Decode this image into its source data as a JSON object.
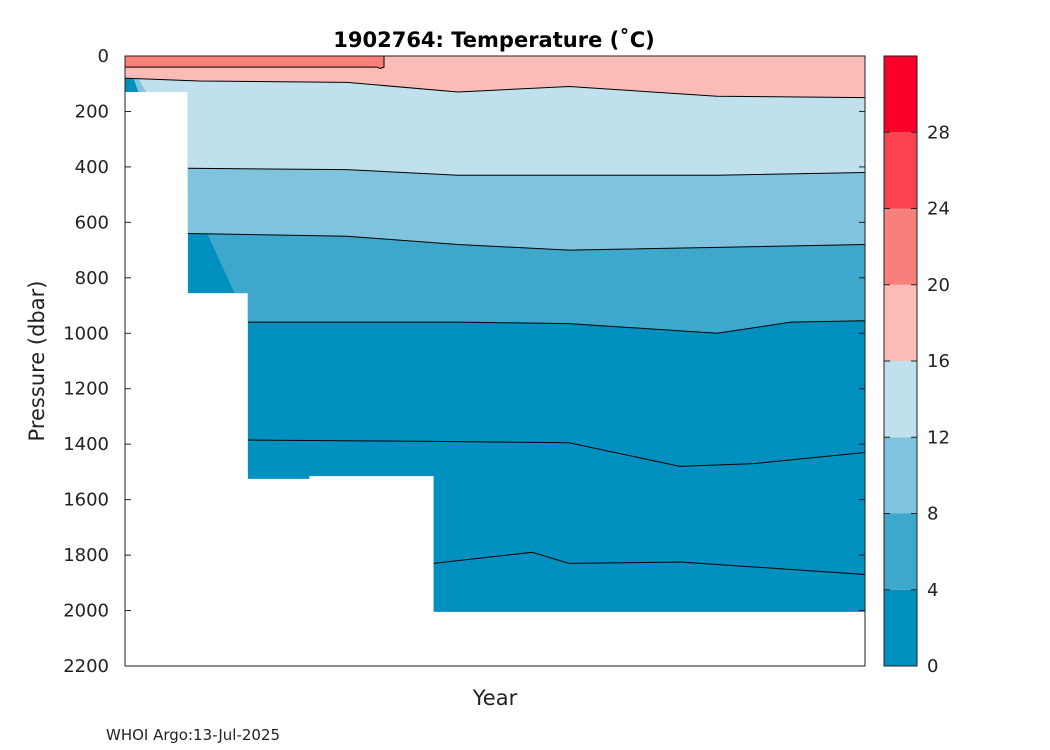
{
  "chart_data": {
    "type": "heatmap",
    "title": "1902764:  Temperature (˚C)",
    "xlabel": "Year",
    "ylabel": "Pressure (dbar)",
    "ylim": [
      0,
      2200
    ],
    "y_reversed": true,
    "y_ticks": [
      0,
      200,
      400,
      600,
      800,
      1000,
      1200,
      1400,
      1600,
      1800,
      2000,
      2200
    ],
    "x_ticks": [],
    "colorbar": {
      "range": [
        0,
        32
      ],
      "ticks": [
        0,
        4,
        8,
        12,
        16,
        20,
        24,
        28
      ],
      "bins": [
        {
          "min": 0,
          "max": 4,
          "color": "#0090bf"
        },
        {
          "min": 4,
          "max": 8,
          "color": "#3ea7cc"
        },
        {
          "min": 8,
          "max": 12,
          "color": "#80c3de"
        },
        {
          "min": 12,
          "max": 16,
          "color": "#bfe0ec"
        },
        {
          "min": 16,
          "max": 20,
          "color": "#fbbcb7"
        },
        {
          "min": 20,
          "max": 24,
          "color": "#f7807a"
        },
        {
          "min": 24,
          "max": 28,
          "color": "#fa4251"
        },
        {
          "min": 28,
          "max": 32,
          "color": "#fb0029"
        }
      ]
    },
    "max_pressure_profile": {
      "x_fraction": [
        0,
        0.085,
        0.085,
        0.166,
        0.166,
        0.249,
        0.249,
        0.417,
        0.417,
        1.0
      ],
      "pressure": [
        130,
        130,
        855,
        855,
        1525,
        1525,
        1515,
        1515,
        2005,
        2005
      ]
    },
    "isotherms": [
      {
        "value": 20,
        "x_fraction": [
          0,
          0.34,
          0.345,
          0.35,
          0.35
        ],
        "pressure": [
          40,
          40,
          45,
          40,
          0
        ]
      },
      {
        "value": 16,
        "x_fraction": [
          0,
          0.1,
          0.3,
          0.45,
          0.6,
          0.8,
          1.0
        ],
        "pressure": [
          80,
          90,
          95,
          130,
          110,
          145,
          150
        ]
      },
      {
        "value": 12,
        "x_fraction": [
          0.085,
          0.3,
          0.45,
          0.6,
          0.8,
          1.0
        ],
        "pressure": [
          405,
          410,
          430,
          430,
          430,
          420
        ]
      },
      {
        "value": 8,
        "x_fraction": [
          0.085,
          0.3,
          0.45,
          0.6,
          0.8,
          1.0
        ],
        "pressure": [
          640,
          650,
          680,
          700,
          690,
          680
        ]
      },
      {
        "value": 4,
        "x_fraction": [
          0.166,
          0.3,
          0.45,
          0.6,
          0.8,
          0.9,
          1.0
        ],
        "pressure": [
          960,
          960,
          960,
          965,
          1000,
          960,
          955
        ]
      },
      {
        "value": 3,
        "x_fraction": [
          0.166,
          0.417,
          0.6,
          0.75,
          0.85,
          1.0
        ],
        "pressure": [
          1385,
          1390,
          1395,
          1480,
          1470,
          1430
        ]
      },
      {
        "value": 2.5,
        "x_fraction": [
          0.417,
          0.55,
          0.6,
          0.75,
          1.0
        ],
        "pressure": [
          1830,
          1790,
          1830,
          1825,
          1870
        ]
      }
    ]
  },
  "footer": "WHOI Argo:13-Jul-2025"
}
